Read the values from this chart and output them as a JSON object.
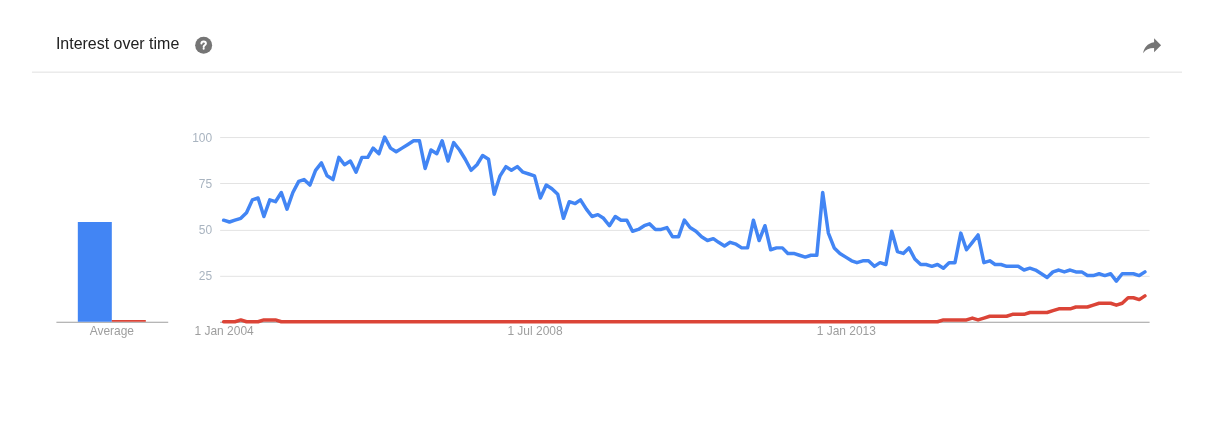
{
  "chart_data": [
    {
      "type": "bar",
      "title": "Interest over time",
      "categories": [
        "Average"
      ],
      "series": [
        {
          "color": "#4285f4",
          "values": [
            54
          ]
        },
        {
          "color": "#db4437",
          "values": [
            1
          ]
        }
      ],
      "ylim": [
        0,
        100
      ],
      "tick_labels": "x"
    },
    {
      "type": "line",
      "x": [
        "2004-01",
        "2004-02",
        "2004-03",
        "2004-04",
        "2004-05",
        "2004-06",
        "2004-07",
        "2004-08",
        "2004-09",
        "2004-10",
        "2004-11",
        "2004-12",
        "2005-01",
        "2005-02",
        "2005-03",
        "2005-04",
        "2005-05",
        "2005-06",
        "2005-07",
        "2005-08",
        "2005-09",
        "2005-10",
        "2005-11",
        "2005-12",
        "2006-01",
        "2006-02",
        "2006-03",
        "2006-04",
        "2006-05",
        "2006-06",
        "2006-07",
        "2006-08",
        "2006-09",
        "2006-10",
        "2006-11",
        "2006-12",
        "2007-01",
        "2007-02",
        "2007-03",
        "2007-04",
        "2007-05",
        "2007-06",
        "2007-07",
        "2007-08",
        "2007-09",
        "2007-10",
        "2007-11",
        "2007-12",
        "2008-01",
        "2008-02",
        "2008-03",
        "2008-04",
        "2008-05",
        "2008-06",
        "2008-07",
        "2008-08",
        "2008-09",
        "2008-10",
        "2008-11",
        "2008-12",
        "2009-01",
        "2009-02",
        "2009-03",
        "2009-04",
        "2009-05",
        "2009-06",
        "2009-07",
        "2009-08",
        "2009-09",
        "2009-10",
        "2009-11",
        "2009-12",
        "2010-01",
        "2010-02",
        "2010-03",
        "2010-04",
        "2010-05",
        "2010-06",
        "2010-07",
        "2010-08",
        "2010-09",
        "2010-10",
        "2010-11",
        "2010-12",
        "2011-01",
        "2011-02",
        "2011-03",
        "2011-04",
        "2011-05",
        "2011-06",
        "2011-07",
        "2011-08",
        "2011-09",
        "2011-10",
        "2011-11",
        "2011-12",
        "2012-01",
        "2012-02",
        "2012-03",
        "2012-04",
        "2012-05",
        "2012-06",
        "2012-07",
        "2012-08",
        "2012-09",
        "2012-10",
        "2012-11",
        "2012-12",
        "2013-01",
        "2013-02",
        "2013-03",
        "2013-04",
        "2013-05",
        "2013-06",
        "2013-07",
        "2013-08",
        "2013-09",
        "2013-10",
        "2013-11",
        "2013-12",
        "2014-01",
        "2014-02",
        "2014-03",
        "2014-04",
        "2014-05",
        "2014-06",
        "2014-07",
        "2014-08",
        "2014-09",
        "2014-10",
        "2014-11",
        "2014-12",
        "2015-01",
        "2015-02",
        "2015-03",
        "2015-04",
        "2015-05",
        "2015-06",
        "2015-07",
        "2015-08",
        "2015-09",
        "2015-10",
        "2015-11",
        "2015-12",
        "2016-01",
        "2016-02",
        "2016-03",
        "2016-04",
        "2016-05",
        "2016-06",
        "2016-07",
        "2016-08",
        "2016-09",
        "2016-10",
        "2016-11",
        "2016-12",
        "2017-01",
        "2017-02",
        "2017-03",
        "2017-04",
        "2017-05"
      ],
      "series": [
        {
          "color": "#4285f4",
          "values": [
            55,
            54,
            55,
            56,
            59,
            66,
            67,
            57,
            66,
            65,
            70,
            61,
            70,
            76,
            77,
            74,
            82,
            86,
            79,
            77,
            89,
            85,
            87,
            81,
            89,
            89,
            94,
            91,
            100,
            94,
            92,
            94,
            96,
            98,
            98,
            83,
            93,
            91,
            98,
            87,
            97,
            93,
            88,
            82,
            85,
            90,
            88,
            69,
            79,
            84,
            82,
            84,
            81,
            80,
            79,
            67,
            74,
            72,
            69,
            56,
            65,
            64,
            66,
            61,
            57,
            58,
            56,
            52,
            57,
            55,
            55,
            49,
            50,
            52,
            53,
            50,
            50,
            51,
            46,
            46,
            55,
            51,
            49,
            46,
            44,
            45,
            43,
            41,
            43,
            42,
            40,
            40,
            55,
            44,
            52,
            39,
            40,
            40,
            37,
            37,
            36,
            35,
            36,
            36,
            70,
            48,
            40,
            37,
            35,
            33,
            32,
            33,
            33,
            30,
            32,
            31,
            49,
            38,
            37,
            40,
            34,
            31,
            31,
            30,
            31,
            29,
            32,
            32,
            48,
            39,
            43,
            47,
            32,
            33,
            31,
            31,
            30,
            30,
            30,
            28,
            29,
            28,
            26,
            24,
            27,
            28,
            27,
            28,
            27,
            27,
            25,
            25,
            26,
            25,
            26,
            22,
            26,
            26,
            26,
            25,
            27
          ]
        },
        {
          "color": "#db4437",
          "values": [
            0,
            0,
            0,
            1,
            0,
            0,
            0,
            1,
            1,
            1,
            0,
            0,
            0,
            0,
            0,
            0,
            0,
            0,
            0,
            0,
            0,
            0,
            0,
            0,
            0,
            0,
            0,
            0,
            0,
            0,
            0,
            0,
            0,
            0,
            0,
            0,
            0,
            0,
            0,
            0,
            0,
            0,
            0,
            0,
            0,
            0,
            0,
            0,
            0,
            0,
            0,
            0,
            0,
            0,
            0,
            0,
            0,
            0,
            0,
            0,
            0,
            0,
            0,
            0,
            0,
            0,
            0,
            0,
            0,
            0,
            0,
            0,
            0,
            0,
            0,
            0,
            0,
            0,
            0,
            0,
            0,
            0,
            0,
            0,
            0,
            0,
            0,
            0,
            0,
            0,
            0,
            0,
            0,
            0,
            0,
            0,
            0,
            0,
            0,
            0,
            0,
            0,
            0,
            0,
            0,
            0,
            0,
            0,
            0,
            0,
            0,
            0,
            0,
            0,
            0,
            0,
            0,
            0,
            0,
            0,
            0,
            0,
            0,
            0,
            0,
            1,
            1,
            1,
            1,
            1,
            2,
            1,
            2,
            3,
            3,
            3,
            3,
            4,
            4,
            4,
            5,
            5,
            5,
            5,
            6,
            7,
            7,
            7,
            8,
            8,
            8,
            9,
            10,
            10,
            10,
            9,
            10,
            13,
            13,
            12,
            14
          ]
        }
      ],
      "xlim": [
        "2003-12-11",
        "2017-05-23"
      ],
      "xticks": [
        {
          "value": "2004-01-01",
          "label": "1 Jan 2004"
        },
        {
          "value": "2008-07-01",
          "label": "1 Jul 2008"
        },
        {
          "value": "2013-01-01",
          "label": "1 Jan 2013"
        }
      ],
      "ylim": [
        0,
        100
      ],
      "yticks": [
        25,
        50,
        75,
        100
      ],
      "grid": "y",
      "line_style": "solid"
    }
  ]
}
